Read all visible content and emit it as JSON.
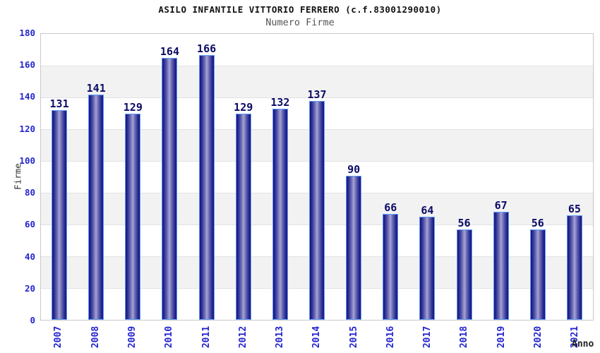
{
  "header": {
    "title": "ASILO INFANTILE VITTORIO FERRERO (c.f.83001290010)",
    "subtitle": "Numero Firme"
  },
  "chart_data": {
    "type": "bar",
    "title": "ASILO INFANTILE VITTORIO FERRERO (c.f.83001290010)",
    "subtitle": "Numero Firme",
    "xlabel": "Anno",
    "ylabel": "Firme",
    "categories": [
      "2007",
      "2008",
      "2009",
      "2010",
      "2011",
      "2012",
      "2013",
      "2014",
      "2015",
      "2016",
      "2017",
      "2018",
      "2019",
      "2020",
      "2021"
    ],
    "values": [
      131,
      141,
      129,
      164,
      166,
      129,
      132,
      137,
      90,
      66,
      64,
      56,
      67,
      56,
      65
    ],
    "ylim": [
      0,
      180
    ],
    "ytick_step": 20,
    "yticks": [
      0,
      20,
      40,
      60,
      80,
      100,
      120,
      140,
      160,
      180
    ],
    "legend_position": "none",
    "grid": "horizontal-bands-alternating",
    "value_labels": "above-bars",
    "colors": {
      "bar_edge": "#14147a",
      "bar_center": "#a4a4d4",
      "bar_border": "#5e9cf7",
      "tick_text": "#2424cf",
      "value_label_text": "#0b0b66",
      "band_fill": "#f2f2f2",
      "gridline": "#e2e2e2",
      "plot_border": "#c9c9c9",
      "title_text": "#111111",
      "subtitle_text": "#555555",
      "axis_title_text": "#333333"
    }
  }
}
